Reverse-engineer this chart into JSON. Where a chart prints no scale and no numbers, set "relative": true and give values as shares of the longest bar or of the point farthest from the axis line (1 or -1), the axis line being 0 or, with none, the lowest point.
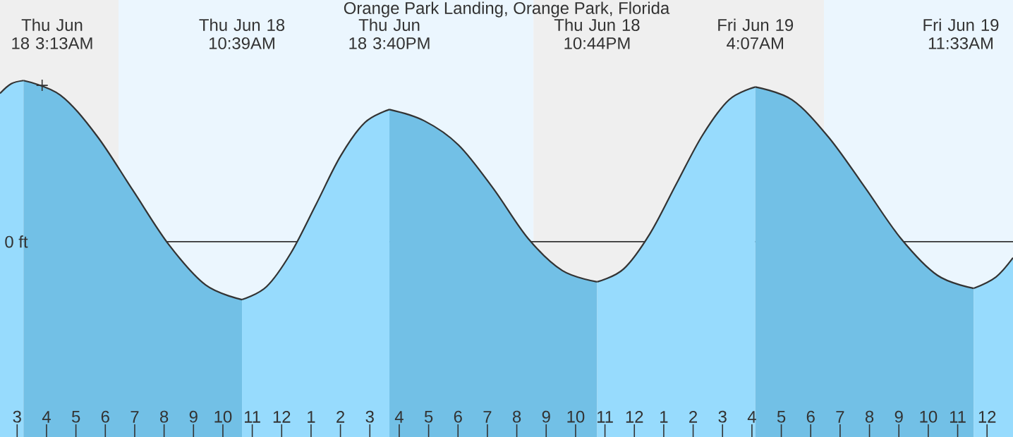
{
  "chart_data": {
    "type": "area",
    "title": "Orange Park Landing, Orange Park, Florida",
    "relative": true,
    "xlim": [
      "--06-18T02:25",
      "--06-19T12:53"
    ],
    "xticks": [
      {
        "value": "--06-18T03:00",
        "label": "3"
      },
      {
        "value": "--06-18T04:00",
        "label": "4"
      },
      {
        "value": "--06-18T05:00",
        "label": "5"
      },
      {
        "value": "--06-18T06:00",
        "label": "6"
      },
      {
        "value": "--06-18T07:00",
        "label": "7"
      },
      {
        "value": "--06-18T08:00",
        "label": "8"
      },
      {
        "value": "--06-18T09:00",
        "label": "9"
      },
      {
        "value": "--06-18T10:00",
        "label": "10"
      },
      {
        "value": "--06-18T11:00",
        "label": "11"
      },
      {
        "value": "--06-18T12:00",
        "label": "12"
      },
      {
        "value": "--06-18T13:00",
        "label": "1"
      },
      {
        "value": "--06-18T14:00",
        "label": "2"
      },
      {
        "value": "--06-18T15:00",
        "label": "3"
      },
      {
        "value": "--06-18T16:00",
        "label": "4"
      },
      {
        "value": "--06-18T17:00",
        "label": "5"
      },
      {
        "value": "--06-18T18:00",
        "label": "6"
      },
      {
        "value": "--06-18T19:00",
        "label": "7"
      },
      {
        "value": "--06-18T20:00",
        "label": "8"
      },
      {
        "value": "--06-18T21:00",
        "label": "9"
      },
      {
        "value": "--06-18T22:00",
        "label": "10"
      },
      {
        "value": "--06-18T23:00",
        "label": "11"
      },
      {
        "value": "--06-19T00:00",
        "label": "12"
      },
      {
        "value": "--06-19T01:00",
        "label": "1"
      },
      {
        "value": "--06-19T02:00",
        "label": "2"
      },
      {
        "value": "--06-19T03:00",
        "label": "3"
      },
      {
        "value": "--06-19T04:00",
        "label": "4"
      },
      {
        "value": "--06-19T05:00",
        "label": "5"
      },
      {
        "value": "--06-19T06:00",
        "label": "6"
      },
      {
        "value": "--06-19T07:00",
        "label": "7"
      },
      {
        "value": "--06-19T08:00",
        "label": "8"
      },
      {
        "value": "--06-19T09:00",
        "label": "9"
      },
      {
        "value": "--06-19T10:00",
        "label": "10"
      },
      {
        "value": "--06-19T11:00",
        "label": "11"
      },
      {
        "value": "--06-19T12:00",
        "label": "12"
      }
    ],
    "series": [
      {
        "color": "#97dbfd",
        "x": [
          "--06-18T02:25",
          "--06-18T02:48",
          "--06-18T03:13"
        ],
        "values": [
          0.92,
          0.98,
          1.0
        ]
      },
      {
        "color": "#72c0e6",
        "x": [
          "--06-18T03:13",
          "--06-18T04:28",
          "--06-18T05:42",
          "--06-18T06:56",
          "--06-18T08:10",
          "--06-18T09:25",
          "--06-18T10:39"
        ],
        "values": [
          1.0,
          0.91,
          0.66,
          0.32,
          -0.02,
          -0.27,
          -0.36
        ]
      },
      {
        "color": "#97dbfd",
        "x": [
          "--06-18T10:39",
          "--06-18T11:29",
          "--06-18T12:19",
          "--06-18T13:10",
          "--06-18T14:00",
          "--06-18T14:50",
          "--06-18T15:40"
        ],
        "values": [
          -0.36,
          -0.28,
          -0.07,
          0.23,
          0.53,
          0.74,
          0.82
        ]
      },
      {
        "color": "#72c0e6",
        "x": [
          "--06-18T15:40",
          "--06-18T16:51",
          "--06-18T18:01",
          "--06-18T19:12",
          "--06-18T20:23",
          "--06-18T21:33",
          "--06-18T22:44"
        ],
        "values": [
          0.82,
          0.75,
          0.6,
          0.33,
          0.02,
          -0.18,
          -0.25
        ]
      },
      {
        "color": "#97dbfd",
        "x": [
          "--06-18T22:44",
          "--06-18T23:38",
          "--06-19T00:32",
          "--06-19T01:26",
          "--06-19T02:19",
          "--06-19T03:13",
          "--06-19T04:07"
        ],
        "values": [
          -0.25,
          -0.17,
          0.05,
          0.36,
          0.66,
          0.88,
          0.96
        ]
      },
      {
        "color": "#72c0e6",
        "x": [
          "--06-19T04:07",
          "--06-19T05:22",
          "--06-19T06:36",
          "--06-19T07:50",
          "--06-19T09:04",
          "--06-19T10:19",
          "--06-19T11:33"
        ],
        "values": [
          0.96,
          0.88,
          0.65,
          0.34,
          0.02,
          -0.21,
          -0.29
        ]
      },
      {
        "color": "#97dbfd",
        "x": [
          "--06-19T11:33",
          "--06-19T12:18",
          "--06-19T12:53"
        ],
        "values": [
          -0.29,
          -0.22,
          -0.1
        ]
      },
      {
        "type": "scatter",
        "color": "#333333",
        "marker": "cross",
        "x": [
          "--06-18T03:51"
        ],
        "values": [
          0.97
        ]
      }
    ],
    "ref_lines": [
      {
        "axis": "y",
        "value": 0,
        "label": "0 ft",
        "color": "#333333"
      }
    ],
    "bands": [
      {
        "axis": "x",
        "from": "--06-18T02:25",
        "to": "--06-18T06:27",
        "color": "#efefef"
      },
      {
        "axis": "x",
        "from": "--06-18T06:27",
        "to": "--06-18T20:34",
        "color": "#ebf6fe"
      },
      {
        "axis": "x",
        "from": "--06-18T20:34",
        "to": "--06-19T06:27",
        "color": "#efefef"
      },
      {
        "axis": "x",
        "from": "--06-19T06:27",
        "to": "--06-19T12:53",
        "color": "#ebf6fe"
      }
    ],
    "annotations": [
      "Thu Jun 18 3:13AM",
      "Thu Jun 18 10:39AM",
      "Thu Jun 18 3:40PM",
      "Thu Jun 18 10:44PM",
      "Fri Jun 19 4:07AM",
      "Fri Jun 19 11:33AM"
    ]
  }
}
